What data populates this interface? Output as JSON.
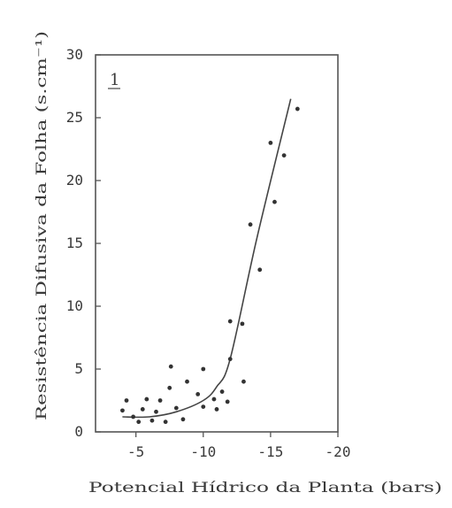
{
  "chart_data": {
    "type": "scatter",
    "panel_label": "1",
    "xlabel": "Potencial Hídrico da Planta (bars)",
    "ylabel": "Resistência Difusiva da Folha (s.cm⁻¹)",
    "xlim": [
      -2,
      -20
    ],
    "ylim": [
      0,
      30
    ],
    "x_ticks": [
      -5,
      -10,
      -15,
      -20
    ],
    "y_ticks": [
      0,
      5,
      10,
      15,
      20,
      25,
      30
    ],
    "x_tick_labels": [
      "-5",
      "-10",
      "-15",
      "-20"
    ],
    "y_tick_labels": [
      "0",
      "5",
      "10",
      "15",
      "20",
      "25",
      "30"
    ],
    "grid": false,
    "series": [
      {
        "points": [
          [
            -4.0,
            1.7
          ],
          [
            -4.3,
            2.5
          ],
          [
            -4.8,
            1.2
          ],
          [
            -5.2,
            0.8
          ],
          [
            -5.5,
            1.8
          ],
          [
            -5.8,
            2.6
          ],
          [
            -6.2,
            0.9
          ],
          [
            -6.5,
            1.6
          ],
          [
            -6.8,
            2.5
          ],
          [
            -7.2,
            0.8
          ],
          [
            -7.5,
            3.5
          ],
          [
            -7.6,
            5.2
          ],
          [
            -8.0,
            1.9
          ],
          [
            -8.5,
            1.0
          ],
          [
            -8.8,
            4.0
          ],
          [
            -9.6,
            3.0
          ],
          [
            -10.0,
            2.0
          ],
          [
            -10.0,
            5.0
          ],
          [
            -10.8,
            2.6
          ],
          [
            -11.0,
            1.8
          ],
          [
            -11.4,
            3.2
          ],
          [
            -11.8,
            2.4
          ],
          [
            -12.0,
            8.8
          ],
          [
            -12.0,
            5.8
          ],
          [
            -12.9,
            8.6
          ],
          [
            -13.0,
            4.0
          ],
          [
            -13.5,
            16.5
          ],
          [
            -14.2,
            12.9
          ],
          [
            -15.0,
            23.0
          ],
          [
            -15.3,
            18.3
          ],
          [
            -16.0,
            22.0
          ],
          [
            -17.0,
            25.7
          ]
        ]
      }
    ],
    "fit_line": {
      "x": [
        -4.0,
        -6.0,
        -8.0,
        -10.0,
        -11.0,
        -12.0,
        -14.0,
        -16.5
      ],
      "y": [
        1.2,
        1.2,
        1.6,
        2.5,
        3.6,
        5.8,
        15.5,
        26.5
      ]
    }
  }
}
